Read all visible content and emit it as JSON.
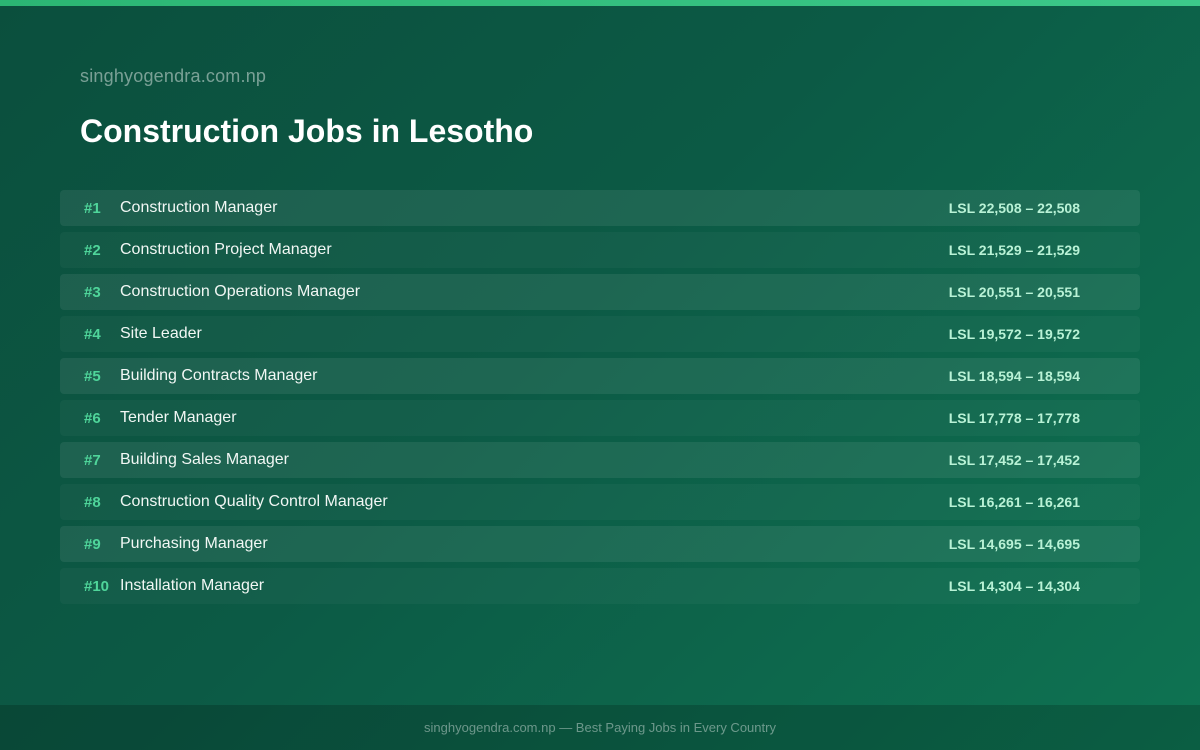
{
  "header": {
    "site": "singhyogendra.com.np",
    "title": "Construction Jobs in Lesotho"
  },
  "jobs": [
    {
      "rank": "#1",
      "title": "Construction Manager",
      "salary": "LSL 22,508 – 22,508"
    },
    {
      "rank": "#2",
      "title": "Construction Project Manager",
      "salary": "LSL 21,529 – 21,529"
    },
    {
      "rank": "#3",
      "title": "Construction Operations Manager",
      "salary": "LSL 20,551 – 20,551"
    },
    {
      "rank": "#4",
      "title": "Site Leader",
      "salary": "LSL 19,572 – 19,572"
    },
    {
      "rank": "#5",
      "title": "Building Contracts Manager",
      "salary": "LSL 18,594 – 18,594"
    },
    {
      "rank": "#6",
      "title": "Tender Manager",
      "salary": "LSL 17,778 – 17,778"
    },
    {
      "rank": "#7",
      "title": "Building Sales Manager",
      "salary": "LSL 17,452 – 17,452"
    },
    {
      "rank": "#8",
      "title": "Construction Quality Control Manager",
      "salary": "LSL 16,261 – 16,261"
    },
    {
      "rank": "#9",
      "title": "Purchasing Manager",
      "salary": "LSL 14,695 – 14,695"
    },
    {
      "rank": "#10",
      "title": "Installation Manager",
      "salary": "LSL 14,304 – 14,304"
    }
  ],
  "footer": {
    "text": "singhyogendra.com.np — Best Paying Jobs in Every Country"
  },
  "colors": {
    "accent": "#4fd59a",
    "background": "#0c5a45",
    "salary": "#b9f2d6"
  }
}
